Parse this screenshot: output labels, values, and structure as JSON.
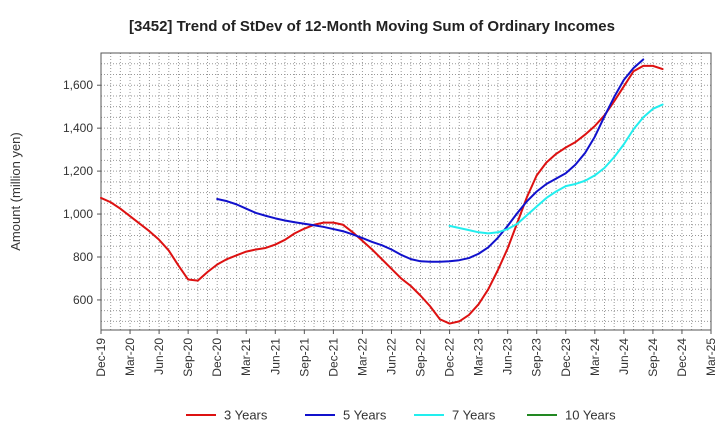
{
  "chart_data": {
    "type": "line",
    "title": "[3452]  Trend of StDev of 12-Month Moving Sum of Ordinary Incomes",
    "xlabel": "",
    "ylabel": "Amount (million yen)",
    "ylim": [
      460,
      1750
    ],
    "yticks": [
      600,
      800,
      1000,
      1200,
      1400,
      1600
    ],
    "ytick_labels": [
      "600",
      "800",
      "1,000",
      "1,200",
      "1,400",
      "1,600"
    ],
    "x_categories": [
      "Dec-19",
      "Mar-20",
      "Jun-20",
      "Sep-20",
      "Dec-20",
      "Mar-21",
      "Jun-21",
      "Sep-21",
      "Dec-21",
      "Mar-22",
      "Jun-22",
      "Sep-22",
      "Dec-22",
      "Mar-23",
      "Jun-23",
      "Sep-23",
      "Dec-23",
      "Mar-24",
      "Jun-24",
      "Sep-24",
      "Dec-24",
      "Mar-25"
    ],
    "grid": true,
    "legend_position": "bottom",
    "series": [
      {
        "name": "3 Years",
        "color": "#dd1111",
        "start_index": 0,
        "values": [
          1075,
          1055,
          1025,
          990,
          955,
          920,
          880,
          830,
          760,
          695,
          690,
          730,
          765,
          790,
          808,
          825,
          835,
          842,
          858,
          880,
          910,
          932,
          950,
          960,
          960,
          950,
          915,
          875,
          835,
          790,
          745,
          700,
          665,
          620,
          570,
          510,
          490,
          500,
          530,
          580,
          650,
          740,
          840,
          960,
          1080,
          1180,
          1240,
          1280,
          1310,
          1335,
          1370,
          1410,
          1460,
          1525,
          1595,
          1665,
          1690,
          1690,
          1675
        ]
      },
      {
        "name": "5 Years",
        "color": "#1111cc",
        "start_index": 12,
        "values": [
          1070,
          1060,
          1045,
          1025,
          1005,
          992,
          980,
          970,
          962,
          955,
          948,
          940,
          930,
          920,
          905,
          888,
          870,
          855,
          835,
          810,
          790,
          780,
          778,
          778,
          780,
          785,
          795,
          815,
          845,
          890,
          945,
          1005,
          1060,
          1105,
          1140,
          1165,
          1190,
          1230,
          1285,
          1360,
          1455,
          1545,
          1625,
          1680,
          1720
        ]
      },
      {
        "name": "7 Years",
        "color": "#22eeee",
        "start_index": 36,
        "values": [
          945,
          935,
          925,
          915,
          910,
          915,
          930,
          955,
          995,
          1035,
          1075,
          1105,
          1130,
          1140,
          1155,
          1180,
          1215,
          1265,
          1325,
          1395,
          1450,
          1490,
          1510
        ]
      },
      {
        "name": "10 Years",
        "color": "#228822",
        "start_index": 0,
        "values": []
      }
    ]
  }
}
